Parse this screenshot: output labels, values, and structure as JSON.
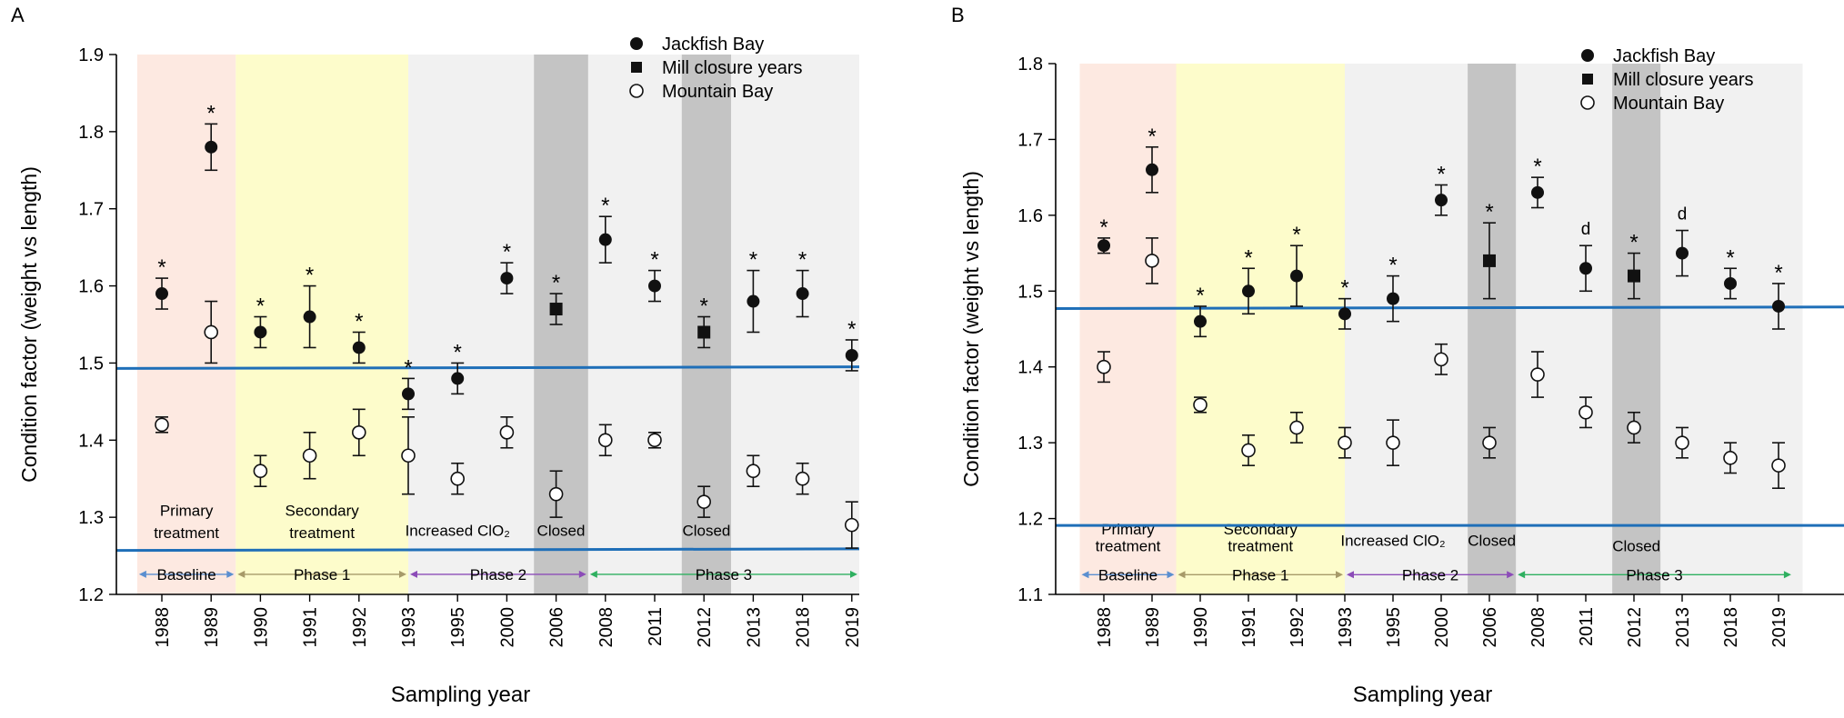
{
  "figure": {
    "panel_labels": [
      "A",
      "B"
    ]
  },
  "colors": {
    "primary_bg": "#fde9e1",
    "secondary_bg": "#fdfccb",
    "other_bg": "#f1f1f1",
    "closed_bg": "#c4c4c4",
    "ref_line": "#1f6fb8",
    "baseline_arrow": "#5b8fd0",
    "phase1_arrow": "#a79a6a",
    "phase2_arrow": "#8c4cb8",
    "phase3_arrow": "#2fb060"
  },
  "chart_data": [
    {
      "panel": "A",
      "type": "scatter",
      "title": "",
      "xlabel": "Sampling year",
      "ylabel": "Condition factor (weight vs length)",
      "ylim": [
        1.2,
        1.9
      ],
      "yticks": [
        "1.2",
        "1.3",
        "1.4",
        "1.5",
        "1.6",
        "1.7",
        "1.8",
        "1.9"
      ],
      "categories": [
        "1988",
        "1989",
        "1990",
        "1991",
        "1992",
        "1993",
        "1995",
        "2000",
        "2006",
        "2008",
        "2011",
        "2012",
        "2013",
        "2018",
        "2019"
      ],
      "legend": [
        "Jackfish Bay",
        "Mill closure years",
        "Mountain Bay"
      ],
      "series": [
        {
          "name": "Jackfish Bay",
          "marker": [
            "circle",
            "circle",
            "circle",
            "circle",
            "circle",
            "circle",
            "circle",
            "circle",
            "square",
            "circle",
            "circle",
            "square",
            "circle",
            "circle",
            "circle"
          ],
          "values": [
            1.59,
            1.78,
            1.54,
            1.56,
            1.52,
            1.46,
            1.48,
            1.61,
            1.57,
            1.66,
            1.6,
            1.54,
            1.58,
            1.59,
            1.51
          ],
          "err": [
            0.02,
            0.03,
            0.02,
            0.04,
            0.02,
            0.02,
            0.02,
            0.02,
            0.02,
            0.03,
            0.02,
            0.02,
            0.04,
            0.03,
            0.02
          ],
          "annotations": [
            "*",
            "*",
            "*",
            "*",
            "*",
            "*",
            "*",
            "*",
            "*",
            "*",
            "*",
            "*",
            "*",
            "*",
            "*"
          ]
        },
        {
          "name": "Mountain Bay",
          "marker": "open-circle",
          "values": [
            1.42,
            1.54,
            1.36,
            1.38,
            1.41,
            1.38,
            1.35,
            1.41,
            1.33,
            1.4,
            1.4,
            1.32,
            1.36,
            1.35,
            1.29
          ],
          "err": [
            0.01,
            0.04,
            0.02,
            0.03,
            0.03,
            0.05,
            0.02,
            0.02,
            0.03,
            0.02,
            0.01,
            0.02,
            0.02,
            0.02,
            0.03
          ]
        }
      ],
      "reference_lines": [
        {
          "y_start": 1.493,
          "y_end": 1.495
        },
        {
          "y_start": 1.257,
          "y_end": 1.259
        }
      ],
      "regions": [
        {
          "from": -0.5,
          "to": 1.5,
          "fill": "primary"
        },
        {
          "from": 1.5,
          "to": 5.0,
          "fill": "secondary"
        },
        {
          "from": 5.0,
          "to": 14.5,
          "fill": "other"
        },
        {
          "from": 7.55,
          "to": 8.65,
          "fill": "closed"
        },
        {
          "from": 10.55,
          "to": 11.55,
          "fill": "closed"
        }
      ],
      "region_labels": [
        {
          "text": "Primary",
          "x": 0.5,
          "y": 1.302
        },
        {
          "text": "treatment",
          "x": 0.5,
          "y": 1.273
        },
        {
          "text": "Secondary",
          "x": 3.25,
          "y": 1.302
        },
        {
          "text": "treatment",
          "x": 3.25,
          "y": 1.273
        },
        {
          "text": "Increased ClO₂",
          "x": 6.0,
          "y": 1.276
        },
        {
          "text": "Closed",
          "x": 8.1,
          "y": 1.276
        },
        {
          "text": "Closed",
          "x": 11.05,
          "y": 1.276
        }
      ],
      "phases": [
        {
          "label": "Baseline",
          "from": -0.5,
          "to": 1.5,
          "color": "baseline"
        },
        {
          "label": "Phase 1",
          "from": 1.5,
          "to": 5.0,
          "color": "phase1"
        },
        {
          "label": "Phase 2",
          "from": 5.0,
          "to": 8.65,
          "color": "phase2"
        },
        {
          "label": "Phase 3",
          "from": 8.65,
          "to": 14.3,
          "color": "phase3"
        }
      ],
      "phase_y": 1.226
    },
    {
      "panel": "B",
      "type": "scatter",
      "title": "",
      "xlabel": "Sampling year",
      "ylabel": "Condition factor (weight vs length)",
      "ylim": [
        1.1,
        1.8
      ],
      "yticks": [
        "1.1",
        "1.2",
        "1.3",
        "1.4",
        "1.5",
        "1.6",
        "1.7",
        "1.8"
      ],
      "categories": [
        "1988",
        "1989",
        "1990",
        "1991",
        "1992",
        "1993",
        "1995",
        "2000",
        "2006",
        "2008",
        "2011",
        "2012",
        "2013",
        "2018",
        "2019"
      ],
      "legend": [
        "Jackfish Bay",
        "Mill closure years",
        "Mountain Bay"
      ],
      "series": [
        {
          "name": "Jackfish Bay",
          "marker": [
            "circle",
            "circle",
            "circle",
            "circle",
            "circle",
            "circle",
            "circle",
            "circle",
            "square",
            "circle",
            "circle",
            "square",
            "circle",
            "circle",
            "circle"
          ],
          "values": [
            1.56,
            1.66,
            1.46,
            1.5,
            1.52,
            1.47,
            1.49,
            1.62,
            1.54,
            1.63,
            1.53,
            1.52,
            1.55,
            1.51,
            1.48
          ],
          "err": [
            0.01,
            0.03,
            0.02,
            0.03,
            0.04,
            0.02,
            0.03,
            0.02,
            0.05,
            0.02,
            0.03,
            0.03,
            0.03,
            0.02,
            0.03
          ],
          "annotations": [
            "*",
            "*",
            "*",
            "*",
            "*",
            "*",
            "*",
            "*",
            "*",
            "*",
            "d",
            "*",
            "d",
            "*",
            "*"
          ]
        },
        {
          "name": "Mountain Bay",
          "marker": "open-circle",
          "values": [
            1.4,
            1.54,
            1.35,
            1.29,
            1.32,
            1.3,
            1.3,
            1.41,
            1.3,
            1.39,
            1.34,
            1.32,
            1.3,
            1.28,
            1.27
          ],
          "err": [
            0.02,
            0.03,
            0.01,
            0.02,
            0.02,
            0.02,
            0.03,
            0.02,
            0.02,
            0.03,
            0.02,
            0.02,
            0.02,
            0.02,
            0.03
          ]
        }
      ],
      "reference_lines": [
        {
          "y_start": 1.477,
          "y_end": 1.479
        },
        {
          "y_start": 1.191,
          "y_end": 1.191
        }
      ],
      "regions": [
        {
          "from": -0.5,
          "to": 1.5,
          "fill": "primary"
        },
        {
          "from": 1.5,
          "to": 5.0,
          "fill": "secondary"
        },
        {
          "from": 5.0,
          "to": 14.5,
          "fill": "other"
        },
        {
          "from": 7.55,
          "to": 8.55,
          "fill": "closed"
        },
        {
          "from": 10.55,
          "to": 11.55,
          "fill": "closed"
        }
      ],
      "region_labels": [
        {
          "text": "Primary",
          "x": 0.5,
          "y": 1.179
        },
        {
          "text": "treatment",
          "x": 0.5,
          "y": 1.157
        },
        {
          "text": "Secondary",
          "x": 3.25,
          "y": 1.179
        },
        {
          "text": "treatment",
          "x": 3.25,
          "y": 1.157
        },
        {
          "text": "Increased ClO₂",
          "x": 6.0,
          "y": 1.164
        },
        {
          "text": "Closed",
          "x": 8.05,
          "y": 1.164
        },
        {
          "text": "Closed",
          "x": 11.05,
          "y": 1.157
        }
      ],
      "phases": [
        {
          "label": "Baseline",
          "from": -0.5,
          "to": 1.5,
          "color": "baseline"
        },
        {
          "label": "Phase 1",
          "from": 1.5,
          "to": 5.0,
          "color": "phase1"
        },
        {
          "label": "Phase 2",
          "from": 5.0,
          "to": 8.55,
          "color": "phase2"
        },
        {
          "label": "Phase 3",
          "from": 8.55,
          "to": 14.3,
          "color": "phase3"
        }
      ],
      "phase_y": 1.126
    }
  ]
}
